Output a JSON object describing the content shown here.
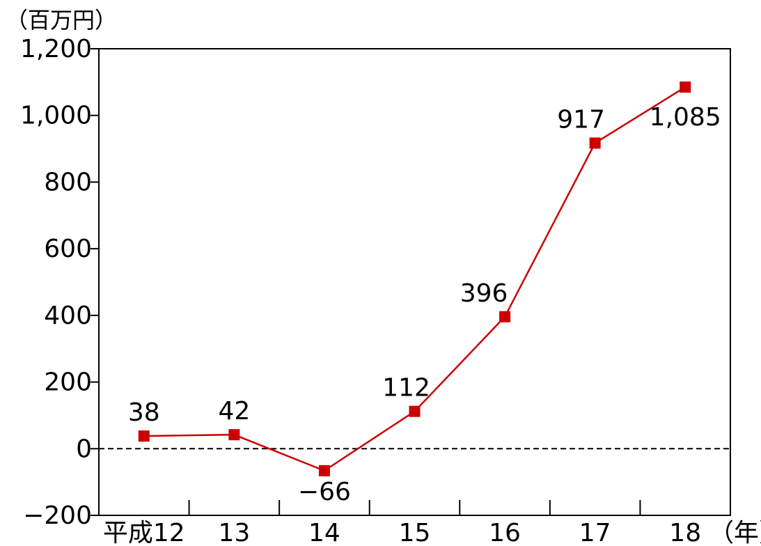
{
  "chart_data": {
    "type": "line",
    "y_unit": "（百万円）",
    "x_unit": "（年）",
    "categories": [
      "平成12",
      "13",
      "14",
      "15",
      "16",
      "17",
      "18"
    ],
    "series": [
      {
        "values": [
          38,
          42,
          -66,
          112,
          396,
          917,
          1085
        ]
      }
    ],
    "data_labels": [
      "38",
      "42",
      "−66",
      "112",
      "396",
      "917",
      "1,085"
    ],
    "yticks": [
      "1,200",
      "1,000",
      "800",
      "600",
      "400",
      "200",
      "0",
      "−200"
    ],
    "ylim": [
      -200,
      1200
    ],
    "reference_line": {
      "y": 0,
      "style": "dashed"
    },
    "grid": false,
    "series_color": "#cc0000",
    "axis_color": "#000000"
  }
}
